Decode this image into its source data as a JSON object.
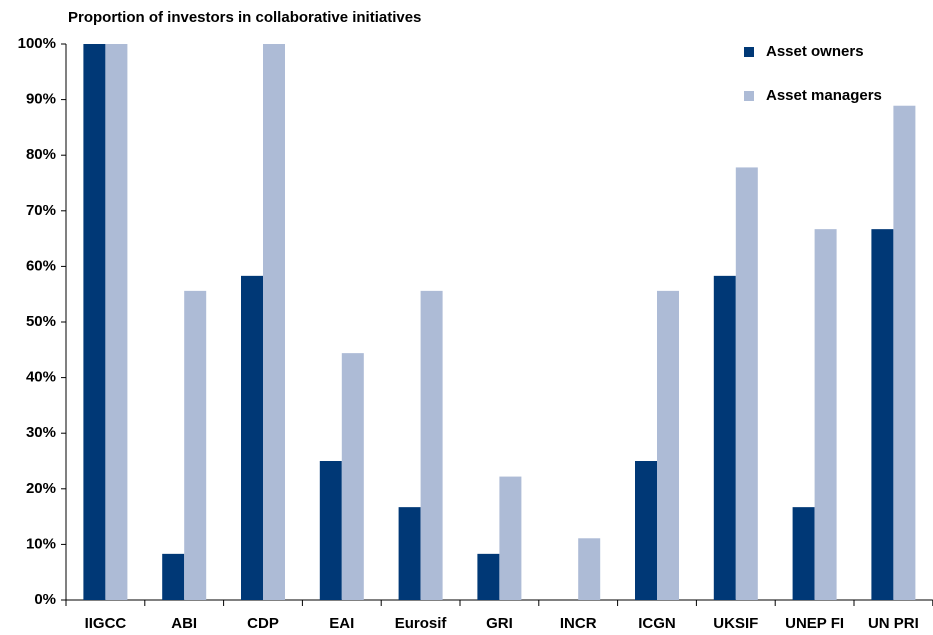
{
  "chart_data": {
    "type": "bar",
    "title": "Proportion of investors in collaborative initiatives",
    "categories": [
      "IIGCC",
      "ABI",
      "CDP",
      "EAI",
      "Eurosif",
      "GRI",
      "INCR",
      "ICGN",
      "UKSIF",
      "UNEP FI",
      "UN PRI"
    ],
    "series": [
      {
        "name": "Asset owners",
        "color": "#003876",
        "values": [
          100,
          8.3,
          58.3,
          25,
          16.7,
          8.3,
          0,
          25,
          58.3,
          16.7,
          66.7
        ]
      },
      {
        "name": "Asset managers",
        "color": "#adbbd6",
        "values": [
          100,
          55.6,
          100,
          44.4,
          55.6,
          22.2,
          11.1,
          55.6,
          77.8,
          66.7,
          88.9
        ]
      }
    ],
    "ylim": [
      0,
      100
    ],
    "yticks": [
      {
        "value": 0,
        "label": "0%"
      },
      {
        "value": 10,
        "label": "10%"
      },
      {
        "value": 20,
        "label": "20%"
      },
      {
        "value": 30,
        "label": "30%"
      },
      {
        "value": 40,
        "label": "40%"
      },
      {
        "value": 50,
        "label": "50%"
      },
      {
        "value": 60,
        "label": "60%"
      },
      {
        "value": 70,
        "label": "70%"
      },
      {
        "value": 80,
        "label": "80%"
      },
      {
        "value": 90,
        "label": "90%"
      },
      {
        "value": 100,
        "label": "100%"
      }
    ],
    "grid": false,
    "legend": "top-right"
  }
}
